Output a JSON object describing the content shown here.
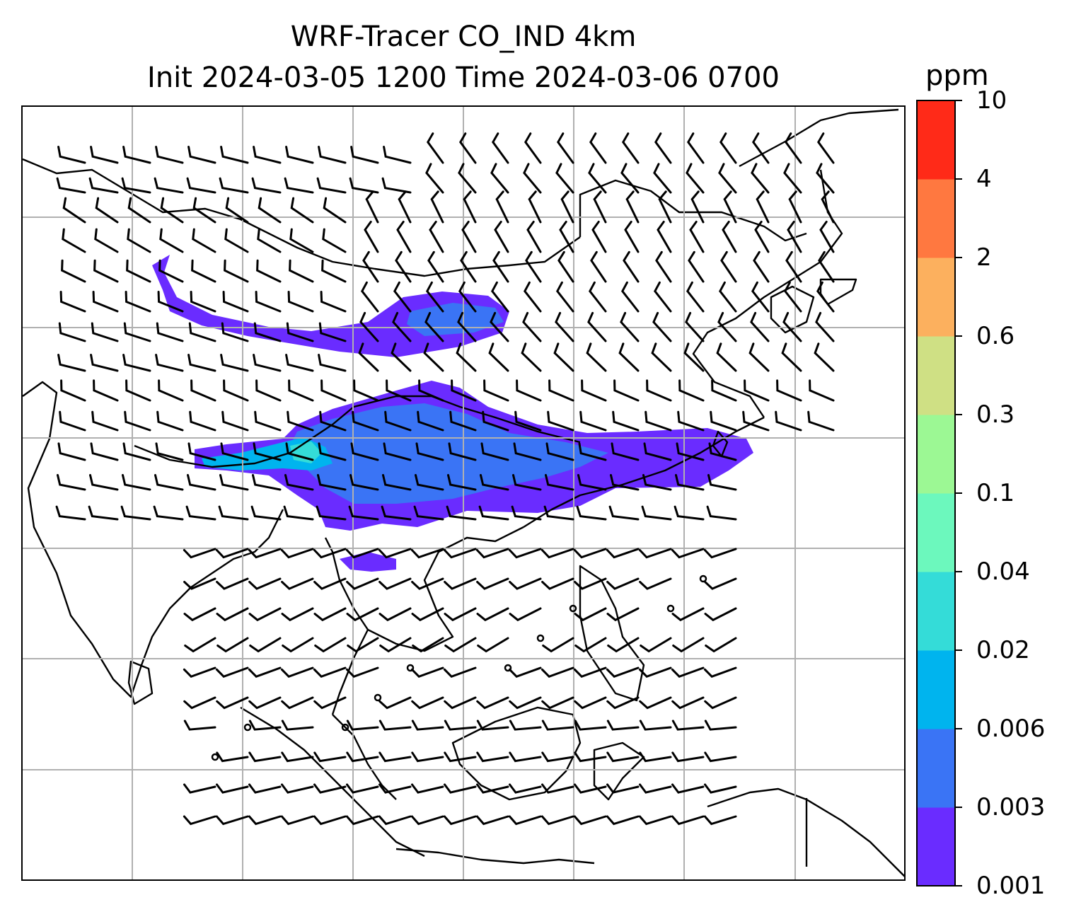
{
  "title": {
    "line1": "WRF-Tracer CO_IND 4km",
    "line2": "Init 2024-03-05 1200 Time 2024-03-06 0700"
  },
  "colorbar": {
    "unit": "ppm",
    "levels": [
      "0.001",
      "0.003",
      "0.006",
      "0.02",
      "0.04",
      "0.1",
      "0.3",
      "0.6",
      "2",
      "4",
      "10"
    ],
    "colors": [
      "#6a2cff",
      "#3a74f5",
      "#00b4ee",
      "#34dcd8",
      "#6cf8bd",
      "#9cf894",
      "#cfe084",
      "#fcb05e",
      "#ff7840",
      "#ff2a18"
    ]
  },
  "map": {
    "gridlines": true,
    "grid_color": "#b0b0b0",
    "coast_color": "#000000",
    "barb_color": "#000000"
  }
}
